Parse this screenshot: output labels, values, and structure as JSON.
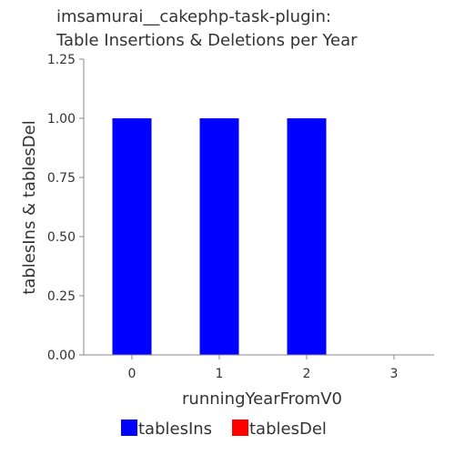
{
  "chart_data": {
    "type": "bar",
    "title": [
      "imsamurai__cakephp-task-plugin:",
      "Table Insertions & Deletions per Year"
    ],
    "xlabel": "runningYearFromV0",
    "ylabel": "tablesIns & tablesDel",
    "categories": [
      "0",
      "1",
      "2",
      "3"
    ],
    "series": [
      {
        "name": "tablesIns",
        "color": "#0000ff",
        "values": [
          1.0,
          1.0,
          1.0,
          0.0
        ]
      },
      {
        "name": "tablesDel",
        "color": "#ff0000",
        "values": [
          0.0,
          0.0,
          0.0,
          0.0
        ]
      }
    ],
    "ylim": [
      0,
      1.25
    ],
    "yticks": [
      "0.00",
      "0.25",
      "0.50",
      "0.75",
      "1.00",
      "1.25"
    ],
    "grid": false,
    "legend_position": "bottom"
  }
}
